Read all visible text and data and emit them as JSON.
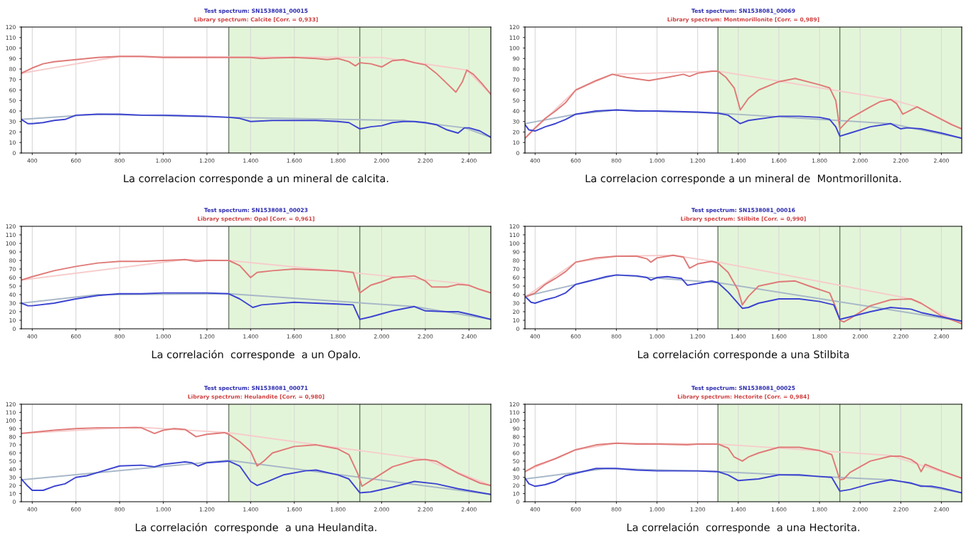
{
  "chart_data": [
    {
      "type": "line",
      "title": "Test spectrum: SN1538081_00015",
      "subtitle": "Library spectrum: Calcite [Corr. = 0,933]",
      "annotations": [
        "La correlacion corresponde a un mineral de calcita."
      ],
      "xlim": [
        350,
        2500
      ],
      "ylim": [
        0,
        120
      ],
      "xticks": [
        400,
        600,
        800,
        {
          "value": 1000,
          "label": "1.000"
        },
        {
          "value": 1200,
          "label": "1.200"
        },
        {
          "value": 1400,
          "label": "1.400"
        },
        {
          "value": 1600,
          "label": "1.600"
        },
        {
          "value": 1800,
          "label": "1.800"
        },
        {
          "value": 2000,
          "label": "2.000"
        },
        {
          "value": 2200,
          "label": "2.200"
        },
        {
          "value": 2400,
          "label": "2.400"
        }
      ],
      "yticks": [
        0,
        10,
        20,
        30,
        40,
        50,
        60,
        70,
        80,
        90,
        100,
        110,
        120
      ],
      "grid": "x",
      "legend": false,
      "bands": [
        {
          "axis": "x",
          "from": 1300,
          "to": 2500,
          "color": "#e3f5d8"
        }
      ],
      "ref_lines": [
        {
          "axis": "x",
          "value": 1300,
          "color": "#6a7a6a"
        },
        {
          "axis": "x",
          "value": 1900,
          "color": "#6a7a6a"
        }
      ],
      "series": [
        {
          "color": "#f6cccc",
          "x": [
            350,
            800,
            2000,
            2390,
            2500
          ],
          "values": [
            76,
            92,
            91,
            79,
            56
          ]
        },
        {
          "color": "#a8b8c8",
          "x": [
            350,
            700,
            1300,
            2100,
            2380,
            2500
          ],
          "values": [
            32,
            37,
            34,
            31,
            24,
            15
          ]
        },
        {
          "color": "#df7a78",
          "x": [
            350,
            400,
            450,
            500,
            600,
            700,
            800,
            900,
            1000,
            1200,
            1300,
            1400,
            1450,
            1500,
            1600,
            1700,
            1750,
            1800,
            1850,
            1880,
            1900,
            1950,
            2000,
            2050,
            2100,
            2150,
            2200,
            2250,
            2300,
            2340,
            2370,
            2390,
            2420,
            2460,
            2500
          ],
          "values": [
            76,
            81,
            85,
            87,
            89,
            91,
            92,
            92,
            91,
            91,
            91,
            91,
            90,
            90.5,
            91,
            90,
            89,
            90,
            87,
            83,
            86,
            85,
            82,
            88,
            89,
            86,
            84,
            76,
            66,
            58,
            68,
            79,
            75,
            66,
            56
          ]
        },
        {
          "color": "#3c44d0",
          "x": [
            350,
            380,
            400,
            450,
            500,
            550,
            600,
            700,
            800,
            900,
            1000,
            1200,
            1300,
            1350,
            1400,
            1500,
            1600,
            1700,
            1800,
            1850,
            1900,
            1950,
            2000,
            2050,
            2100,
            2150,
            2200,
            2250,
            2300,
            2350,
            2380,
            2400,
            2450,
            2500
          ],
          "values": [
            32,
            28,
            28,
            29,
            31,
            32,
            36,
            37,
            37,
            36,
            36,
            35,
            34,
            33,
            30,
            31,
            31,
            31,
            30,
            29,
            23,
            25,
            26,
            29,
            30,
            30,
            29,
            27,
            22,
            19,
            24,
            24,
            21,
            15
          ]
        }
      ]
    },
    {
      "type": "line",
      "title": "Test spectrum: SN1538081_00069",
      "subtitle": "Library spectrum: Montmorillonite [Corr. = 0,989]",
      "annotations": [
        "La correlacion corresponde a un mineral de  Montmorillonita."
      ],
      "xlim": [
        350,
        2500
      ],
      "ylim": [
        0,
        120
      ],
      "xticks": [
        400,
        600,
        800,
        {
          "value": 1000,
          "label": "1.000"
        },
        {
          "value": 1200,
          "label": "1.200"
        },
        {
          "value": 1400,
          "label": "1.400"
        },
        {
          "value": 1600,
          "label": "1.600"
        },
        {
          "value": 1800,
          "label": "1.800"
        },
        {
          "value": 2000,
          "label": "2.000"
        },
        {
          "value": 2200,
          "label": "2.200"
        },
        {
          "value": 2400,
          "label": "2.400"
        }
      ],
      "yticks": [
        0,
        10,
        20,
        30,
        40,
        50,
        60,
        70,
        80,
        90,
        100,
        110,
        120
      ],
      "grid": "x",
      "legend": false,
      "bands": [
        {
          "axis": "x",
          "from": 1300,
          "to": 2500,
          "color": "#e3f5d8"
        }
      ],
      "ref_lines": [
        {
          "axis": "x",
          "value": 1300,
          "color": "#6a7a6a"
        },
        {
          "axis": "x",
          "value": 1900,
          "color": "#6a7a6a"
        }
      ],
      "series": [
        {
          "color": "#f6cccc",
          "x": [
            350,
            600,
            780,
            1300,
            2150,
            2280,
            2500
          ],
          "values": [
            14,
            60,
            75,
            78,
            51,
            44,
            23
          ]
        },
        {
          "color": "#a8b8c8",
          "x": [
            350,
            600,
            800,
            1300,
            2150,
            2500
          ],
          "values": [
            28,
            37,
            41,
            38,
            28,
            14
          ]
        },
        {
          "color": "#df7a78",
          "x": [
            350,
            400,
            450,
            500,
            550,
            600,
            700,
            780,
            850,
            960,
            1050,
            1130,
            1160,
            1200,
            1270,
            1300,
            1340,
            1380,
            1410,
            1450,
            1500,
            1600,
            1680,
            1800,
            1850,
            1880,
            1900,
            1920,
            1950,
            2050,
            2100,
            2150,
            2180,
            2210,
            2250,
            2280,
            2350,
            2450,
            2500
          ],
          "values": [
            14,
            24,
            33,
            40,
            48,
            60,
            69,
            75,
            72,
            69,
            72,
            75,
            73,
            76,
            78,
            78,
            72,
            62,
            41,
            52,
            60,
            68,
            71,
            65,
            62,
            50,
            23,
            27,
            33,
            44,
            49,
            51,
            47,
            37,
            41,
            44,
            37,
            27,
            23
          ]
        },
        {
          "color": "#3c44d0",
          "x": [
            350,
            370,
            400,
            450,
            500,
            550,
            600,
            700,
            800,
            900,
            1000,
            1200,
            1300,
            1350,
            1410,
            1450,
            1600,
            1700,
            1800,
            1850,
            1880,
            1900,
            1950,
            2050,
            2150,
            2200,
            2230,
            2300,
            2400,
            2500
          ],
          "values": [
            27,
            22,
            21,
            25,
            28,
            32,
            37,
            40,
            41,
            40,
            40,
            39,
            38,
            36,
            28,
            31,
            35,
            35,
            34,
            32,
            25,
            16,
            19,
            25,
            28,
            23,
            24,
            23,
            19,
            14
          ]
        }
      ]
    },
    {
      "type": "line",
      "title": "Test spectrum: SN1538081_00023",
      "subtitle": "Library spectrum: Opal [Corr. = 0,961]",
      "annotations": [
        "La correlación  corresponde  a un Opalo."
      ],
      "xlim": [
        350,
        2500
      ],
      "ylim": [
        0,
        120
      ],
      "xticks": [
        400,
        600,
        800,
        {
          "value": 1000,
          "label": "1.000"
        },
        {
          "value": 1200,
          "label": "1.200"
        },
        {
          "value": 1400,
          "label": "1.400"
        },
        {
          "value": 1600,
          "label": "1.600"
        },
        {
          "value": 1800,
          "label": "1.800"
        },
        {
          "value": 2000,
          "label": "2.000"
        },
        {
          "value": 2200,
          "label": "2.200"
        },
        {
          "value": 2400,
          "label": "2.400"
        }
      ],
      "yticks": [
        0,
        10,
        20,
        30,
        40,
        50,
        60,
        70,
        80,
        90,
        100,
        110,
        120
      ],
      "grid": "x",
      "legend": false,
      "bands": [
        {
          "axis": "x",
          "from": 1300,
          "to": 2500,
          "color": "#e3f5d8"
        }
      ],
      "ref_lines": [
        {
          "axis": "x",
          "value": 1300,
          "color": "#6a7a6a"
        },
        {
          "axis": "x",
          "value": 1900,
          "color": "#6a7a6a"
        }
      ],
      "series": [
        {
          "color": "#f6cccc",
          "x": [
            350,
            1100,
            1300,
            2370,
            2500
          ],
          "values": [
            57,
            81,
            80,
            53,
            42
          ]
        },
        {
          "color": "#a8b8c8",
          "x": [
            350,
            700,
            1300,
            2150,
            2500
          ],
          "values": [
            30,
            40,
            41,
            26,
            11
          ]
        },
        {
          "color": "#df7a78",
          "x": [
            350,
            400,
            500,
            600,
            700,
            800,
            900,
            1000,
            1100,
            1150,
            1200,
            1300,
            1350,
            1400,
            1430,
            1500,
            1600,
            1700,
            1800,
            1870,
            1900,
            1950,
            2000,
            2050,
            2150,
            2200,
            2230,
            2300,
            2350,
            2400,
            2450,
            2500
          ],
          "values": [
            57,
            61,
            68,
            73,
            77,
            79,
            79,
            80,
            81,
            79,
            80,
            80,
            74,
            60,
            66,
            68,
            70,
            69,
            68,
            66,
            42,
            51,
            55,
            60,
            62,
            56,
            49,
            49,
            52,
            51,
            46,
            42
          ]
        },
        {
          "color": "#3c44d0",
          "x": [
            350,
            380,
            400,
            500,
            600,
            700,
            800,
            900,
            1000,
            1100,
            1200,
            1300,
            1350,
            1410,
            1450,
            1600,
            1700,
            1800,
            1870,
            1900,
            1950,
            2050,
            2150,
            2200,
            2300,
            2350,
            2420,
            2500
          ],
          "values": [
            30,
            27,
            27,
            30,
            35,
            39,
            41,
            41,
            42,
            42,
            42,
            41,
            35,
            25,
            28,
            31,
            30,
            29,
            28,
            11,
            14,
            21,
            26,
            21,
            20,
            20,
            16,
            11
          ]
        }
      ]
    },
    {
      "type": "line",
      "title": "Test spectrum: SN1538081_00016",
      "subtitle": "Library spectrum: Stilbite [Corr. = 0,990]",
      "annotations": [
        "La correlación corresponde a una Stilbita"
      ],
      "xlim": [
        350,
        2500
      ],
      "ylim": [
        0,
        120
      ],
      "xticks": [
        400,
        600,
        800,
        {
          "value": 1000,
          "label": "1.000"
        },
        {
          "value": 1200,
          "label": "1.200"
        },
        {
          "value": 1400,
          "label": "1.400"
        },
        {
          "value": 1600,
          "label": "1.600"
        },
        {
          "value": 1800,
          "label": "1.800"
        },
        {
          "value": 2000,
          "label": "2.000"
        },
        {
          "value": 2200,
          "label": "2.200"
        },
        {
          "value": 2400,
          "label": "2.400"
        }
      ],
      "yticks": [
        0,
        10,
        20,
        30,
        40,
        50,
        60,
        70,
        80,
        90,
        100,
        110,
        120
      ],
      "grid": "x",
      "legend": false,
      "bands": [
        {
          "axis": "x",
          "from": 1300,
          "to": 2500,
          "color": "#e3f5d8"
        }
      ],
      "ref_lines": [
        {
          "axis": "x",
          "value": 1300,
          "color": "#6a7a6a"
        },
        {
          "axis": "x",
          "value": 1900,
          "color": "#6a7a6a"
        }
      ],
      "series": [
        {
          "color": "#f6cccc",
          "x": [
            350,
            600,
            800,
            1080,
            1300,
            2250,
            2500
          ],
          "values": [
            37,
            78,
            85,
            86,
            78,
            35,
            6
          ]
        },
        {
          "color": "#a8b8c8",
          "x": [
            350,
            800,
            1300,
            2500
          ],
          "values": [
            38,
            63,
            54,
            9
          ]
        },
        {
          "color": "#df7a78",
          "x": [
            350,
            400,
            450,
            500,
            550,
            600,
            700,
            800,
            900,
            950,
            970,
            1000,
            1080,
            1130,
            1160,
            1200,
            1270,
            1300,
            1350,
            1400,
            1420,
            1450,
            1500,
            1600,
            1680,
            1750,
            1850,
            1880,
            1900,
            1920,
            1950,
            2050,
            2150,
            2250,
            2300,
            2400,
            2500
          ],
          "values": [
            37,
            42,
            52,
            59,
            67,
            78,
            83,
            85,
            85,
            82,
            78,
            83,
            86,
            84,
            71,
            76,
            79,
            77,
            66,
            45,
            28,
            38,
            50,
            55,
            56,
            50,
            42,
            25,
            10,
            8,
            12,
            27,
            34,
            35,
            30,
            15,
            6
          ]
        },
        {
          "color": "#3c44d0",
          "x": [
            350,
            380,
            400,
            450,
            500,
            550,
            600,
            650,
            700,
            750,
            800,
            900,
            950,
            970,
            1000,
            1050,
            1120,
            1150,
            1200,
            1270,
            1300,
            1350,
            1420,
            1450,
            1500,
            1600,
            1700,
            1800,
            1870,
            1900,
            1950,
            2050,
            2150,
            2250,
            2300,
            2400,
            2500
          ],
          "values": [
            38,
            31,
            30,
            34,
            37,
            42,
            52,
            55,
            58,
            61,
            63,
            62,
            60,
            57,
            60,
            61,
            59,
            51,
            53,
            56,
            54,
            43,
            24,
            25,
            30,
            35,
            35,
            32,
            28,
            11,
            14,
            20,
            25,
            23,
            19,
            14,
            9
          ]
        }
      ]
    },
    {
      "type": "line",
      "title": "Test spectrum: SN1538081_00071",
      "subtitle": "Library spectrum: Heulandite [Corr. = 0,980]",
      "annotations": [
        "La correlación  corresponde  a una Heulandita."
      ],
      "xlim": [
        350,
        2500
      ],
      "ylim": [
        0,
        120
      ],
      "xticks": [
        400,
        600,
        800,
        {
          "value": 1000,
          "label": "1.000"
        },
        {
          "value": 1200,
          "label": "1.200"
        },
        {
          "value": 1400,
          "label": "1.400"
        },
        {
          "value": 1600,
          "label": "1.600"
        },
        {
          "value": 1800,
          "label": "1.800"
        },
        {
          "value": 2000,
          "label": "2.000"
        },
        {
          "value": 2200,
          "label": "2.200"
        },
        {
          "value": 2400,
          "label": "2.400"
        }
      ],
      "yticks": [
        0,
        10,
        20,
        30,
        40,
        50,
        60,
        70,
        80,
        90,
        100,
        110,
        120
      ],
      "grid": "x",
      "legend": false,
      "bands": [
        {
          "axis": "x",
          "from": 1300,
          "to": 2500,
          "color": "#e3f5d8"
        }
      ],
      "ref_lines": [
        {
          "axis": "x",
          "value": 1300,
          "color": "#6a7a6a"
        },
        {
          "axis": "x",
          "value": 1900,
          "color": "#6a7a6a"
        }
      ],
      "series": [
        {
          "color": "#f6cccc",
          "x": [
            350,
            870,
            1300,
            2200,
            2500
          ],
          "values": [
            84,
            92,
            85,
            52,
            20
          ]
        },
        {
          "color": "#a8b8c8",
          "x": [
            350,
            1300,
            2500
          ],
          "values": [
            27,
            51,
            9
          ]
        },
        {
          "color": "#df7a78",
          "x": [
            350,
            500,
            600,
            700,
            800,
            900,
            960,
            1000,
            1050,
            1100,
            1150,
            1200,
            1280,
            1300,
            1350,
            1400,
            1430,
            1460,
            1500,
            1600,
            1700,
            1800,
            1850,
            1890,
            1910,
            1950,
            2050,
            2150,
            2200,
            2250,
            2350,
            2450,
            2500
          ],
          "values": [
            84,
            88,
            90,
            91,
            91,
            91,
            84,
            88,
            90,
            89,
            80,
            83,
            85,
            83,
            74,
            62,
            44,
            50,
            60,
            68,
            70,
            65,
            58,
            35,
            19,
            26,
            43,
            51,
            52,
            50,
            35,
            23,
            20
          ]
        },
        {
          "color": "#3c44d0",
          "x": [
            350,
            380,
            400,
            450,
            500,
            550,
            600,
            650,
            700,
            800,
            900,
            960,
            1000,
            1100,
            1130,
            1160,
            1200,
            1300,
            1350,
            1400,
            1430,
            1480,
            1550,
            1650,
            1700,
            1800,
            1850,
            1900,
            1950,
            2050,
            2150,
            2250,
            2350,
            2500
          ],
          "values": [
            28,
            19,
            14,
            14,
            19,
            22,
            30,
            32,
            36,
            44,
            45,
            43,
            46,
            49,
            48,
            44,
            48,
            50,
            44,
            25,
            20,
            25,
            33,
            38,
            39,
            33,
            28,
            11,
            12,
            18,
            25,
            22,
            16,
            9
          ]
        }
      ]
    },
    {
      "type": "line",
      "title": "Test spectrum: SN1538081_00025",
      "subtitle": "Library spectrum: Hectorite [Corr. = 0,984]",
      "annotations": [
        "La correlación  corresponde  a una Hectorita."
      ],
      "xlim": [
        350,
        2500
      ],
      "ylim": [
        0,
        120
      ],
      "xticks": [
        400,
        600,
        800,
        {
          "value": 1000,
          "label": "1.000"
        },
        {
          "value": 1200,
          "label": "1.200"
        },
        {
          "value": 1400,
          "label": "1.400"
        },
        {
          "value": 1600,
          "label": "1.600"
        },
        {
          "value": 1800,
          "label": "1.800"
        },
        {
          "value": 2000,
          "label": "2.000"
        },
        {
          "value": 2200,
          "label": "2.200"
        },
        {
          "value": 2400,
          "label": "2.400"
        }
      ],
      "yticks": [
        0,
        10,
        20,
        30,
        40,
        50,
        60,
        70,
        80,
        90,
        100,
        110,
        120
      ],
      "grid": "x",
      "legend": false,
      "bands": [
        {
          "axis": "x",
          "from": 1300,
          "to": 2500,
          "color": "#e3f5d8"
        }
      ],
      "ref_lines": [
        {
          "axis": "x",
          "value": 1300,
          "color": "#6a7a6a"
        },
        {
          "axis": "x",
          "value": 1900,
          "color": "#6a7a6a"
        }
      ],
      "series": [
        {
          "color": "#f6cccc",
          "x": [
            350,
            600,
            800,
            1300,
            2150,
            2500
          ],
          "values": [
            37,
            64,
            72,
            71,
            57,
            29
          ]
        },
        {
          "color": "#a8b8c8",
          "x": [
            350,
            750,
            1300,
            2150,
            2500
          ],
          "values": [
            28,
            41,
            37,
            27,
            11
          ]
        },
        {
          "color": "#df7a78",
          "x": [
            350,
            400,
            500,
            600,
            700,
            800,
            900,
            1000,
            1150,
            1200,
            1300,
            1350,
            1380,
            1420,
            1450,
            1500,
            1600,
            1700,
            1800,
            1860,
            1900,
            1920,
            1950,
            2050,
            2150,
            2200,
            2250,
            2280,
            2300,
            2320,
            2400,
            2500
          ],
          "values": [
            37,
            44,
            53,
            64,
            70,
            72,
            71,
            71,
            70,
            71,
            71,
            66,
            55,
            50,
            55,
            60,
            67,
            67,
            63,
            58,
            27,
            28,
            36,
            50,
            56,
            56,
            52,
            47,
            37,
            46,
            38,
            29
          ]
        },
        {
          "color": "#3c44d0",
          "x": [
            350,
            370,
            400,
            450,
            500,
            550,
            600,
            700,
            750,
            800,
            900,
            1000,
            1200,
            1300,
            1350,
            1400,
            1500,
            1600,
            1700,
            1800,
            1860,
            1900,
            1950,
            2050,
            2150,
            2250,
            2300,
            2350,
            2400,
            2500
          ],
          "values": [
            29,
            22,
            19,
            21,
            25,
            32,
            35,
            41,
            41,
            41,
            39,
            38,
            38,
            37,
            33,
            26,
            28,
            33,
            33,
            31,
            30,
            13,
            15,
            22,
            27,
            23,
            19,
            19,
            17,
            11
          ]
        }
      ]
    }
  ]
}
